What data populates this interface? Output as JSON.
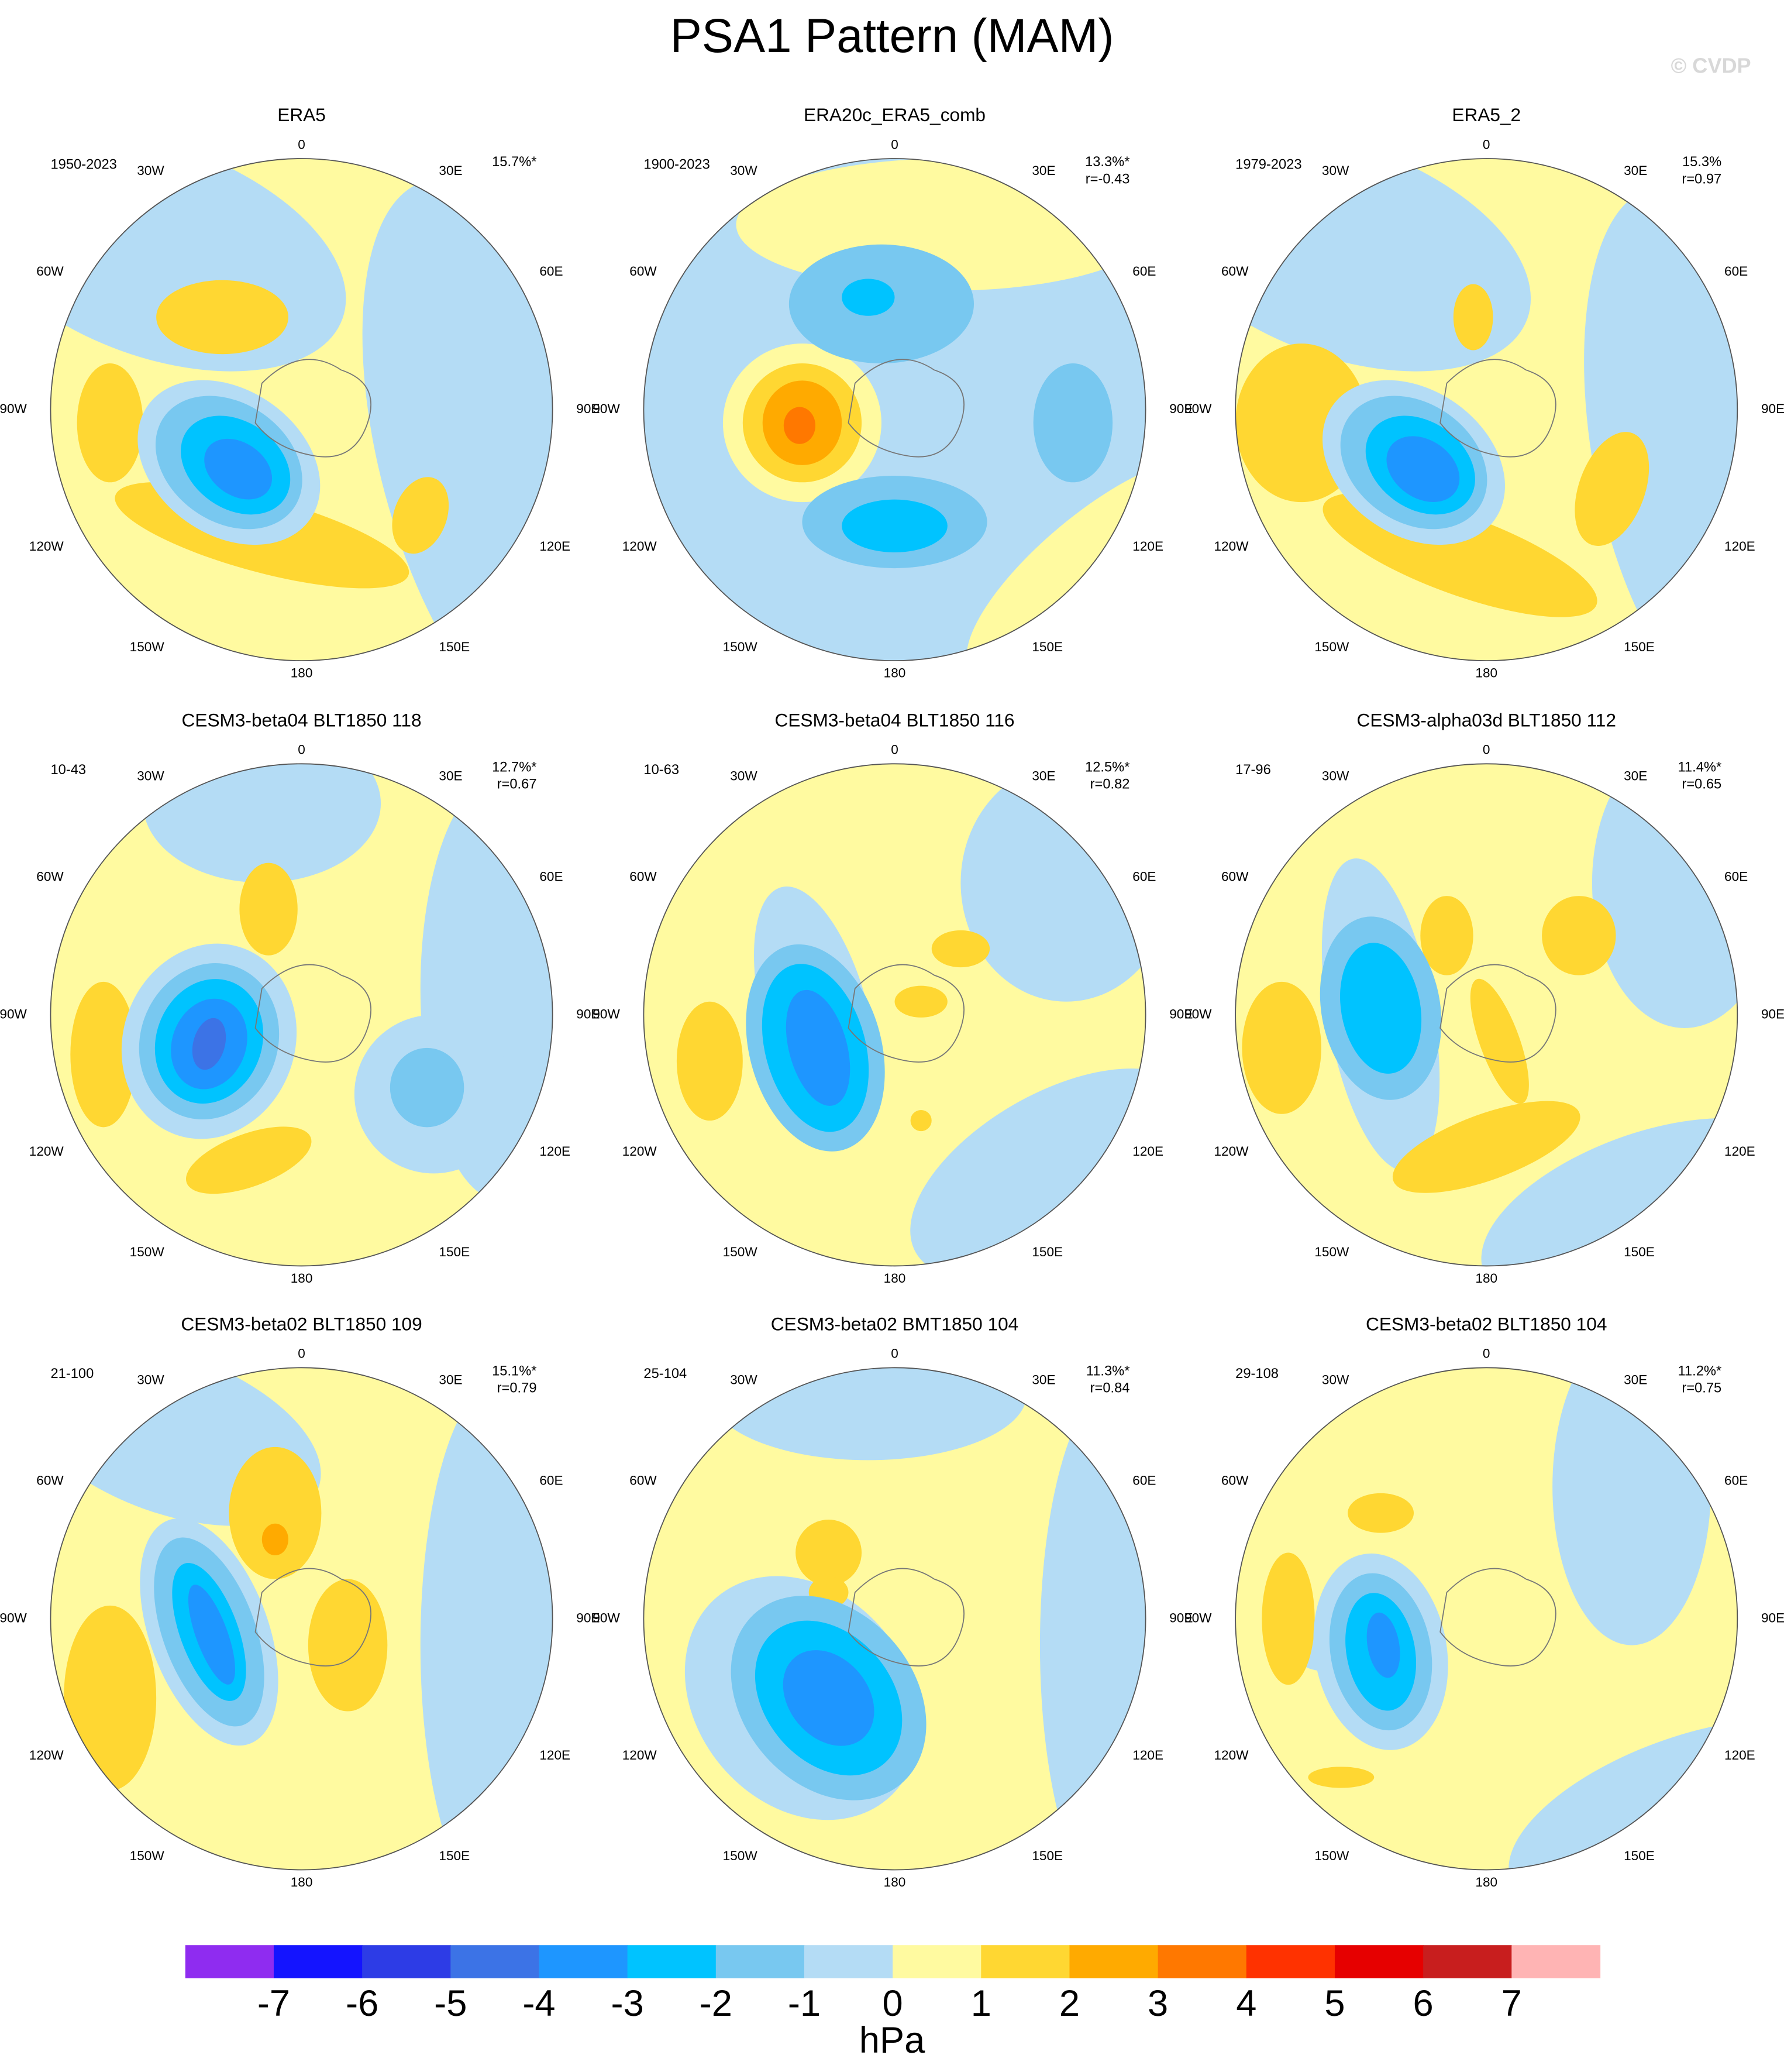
{
  "title": "PSA1 Pattern (MAM)",
  "watermark": "© CVDP",
  "longitude_labels": [
    "0",
    "30E",
    "60E",
    "90E",
    "120E",
    "150E",
    "180",
    "150W",
    "120W",
    "90W",
    "60W",
    "30W"
  ],
  "panels": [
    {
      "title": "ERA5",
      "period": "1950-2023",
      "pct": "15.7%*"
    },
    {
      "title": "ERA20c_ERA5_comb",
      "period": "1900-2023",
      "pct": "13.3%*",
      "r": "r=-0.43"
    },
    {
      "title": "ERA5_2",
      "period": "1979-2023",
      "pct": "15.3%",
      "r": "r=0.97"
    },
    {
      "title": "CESM3-beta04 BLT1850 118",
      "period": "10-43",
      "pct": "12.7%*",
      "r": "r=0.67"
    },
    {
      "title": "CESM3-beta04 BLT1850 116",
      "period": "10-63",
      "pct": "12.5%*",
      "r": "r=0.82"
    },
    {
      "title": "CESM3-alpha03d BLT1850 112",
      "period": "17-96",
      "pct": "11.4%*",
      "r": "r=0.65"
    },
    {
      "title": "CESM3-beta02 BLT1850 109",
      "period": "21-100",
      "pct": "15.1%*",
      "r": "r=0.79"
    },
    {
      "title": "CESM3-beta02 BMT1850 104",
      "period": "25-104",
      "pct": "11.3%*",
      "r": "r=0.84"
    },
    {
      "title": "CESM3-beta02 BLT1850 104",
      "period": "29-108",
      "pct": "11.2%*",
      "r": "r=0.75"
    }
  ],
  "colorbar": {
    "colors": [
      "#8f2cf0",
      "#1414ff",
      "#2d3ce6",
      "#3c73e6",
      "#1e96ff",
      "#00c3ff",
      "#78c8f0",
      "#b4dcf5",
      "#fffaa0",
      "#ffd732",
      "#ffaa00",
      "#ff7800",
      "#ff3200",
      "#e60000",
      "#c81e1e",
      "#ffb4b4"
    ],
    "ticks": [
      -7,
      -6,
      -5,
      -4,
      -3,
      -2,
      -1,
      0,
      1,
      2,
      3,
      4,
      5,
      6,
      7
    ],
    "label": "hPa"
  }
}
